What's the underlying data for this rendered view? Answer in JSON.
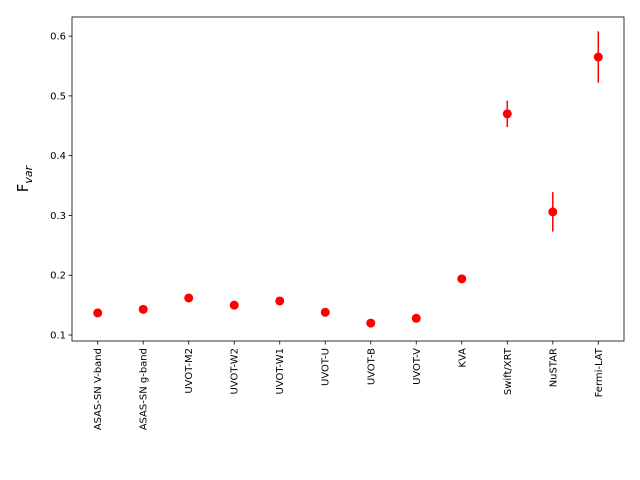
{
  "chart_data": {
    "type": "scatter",
    "ylabel": "F",
    "ylabel_subscript": "var",
    "categories": [
      "ASAS-SN V-band",
      "ASAS-SN g-band",
      "UVOT-M2",
      "UVOT-W2",
      "UVOT-W1",
      "UVOT-U",
      "UVOT-B",
      "UVOT-V",
      "KVA",
      "Swift/XRT",
      "NuSTAR",
      "Fermi-LAT"
    ],
    "values": [
      0.137,
      0.143,
      0.162,
      0.15,
      0.157,
      0.138,
      0.12,
      0.128,
      0.194,
      0.47,
      0.306,
      0.565
    ],
    "errors": [
      0.003,
      0.003,
      0.003,
      0.003,
      0.003,
      0.003,
      0.003,
      0.003,
      0.004,
      0.022,
      0.033,
      0.043
    ],
    "color": "#ff0000",
    "ylim": [
      0.09,
      0.632
    ],
    "yticks": [
      0.1,
      0.2,
      0.3,
      0.4,
      0.5,
      0.6
    ],
    "grid": false
  }
}
